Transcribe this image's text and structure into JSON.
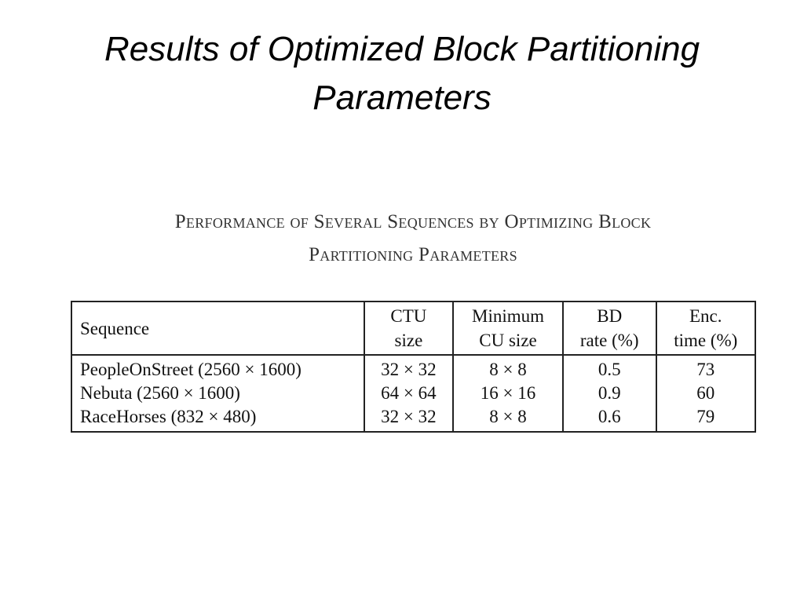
{
  "slide": {
    "title_line1": "Results of Optimized Block Partitioning",
    "title_line2": "Parameters"
  },
  "caption": {
    "line1": "Performance of Several Sequences by Optimizing Block",
    "line2": "Partitioning Parameters"
  },
  "table": {
    "headers": [
      {
        "line1": "Sequence",
        "line2": ""
      },
      {
        "line1": "CTU",
        "line2": "size"
      },
      {
        "line1": "Minimum",
        "line2": "CU size"
      },
      {
        "line1": "BD",
        "line2": "rate (%)"
      },
      {
        "line1": "Enc.",
        "line2": "time (%)"
      }
    ],
    "rows": [
      [
        "PeopleOnStreet (2560 × 1600)",
        "32 × 32",
        "8 × 8",
        "0.5",
        "73"
      ],
      [
        "Nebuta (2560 × 1600)",
        "64 × 64",
        "16 × 16",
        "0.9",
        "60"
      ],
      [
        "RaceHorses (832 × 480)",
        "32 × 32",
        "8 × 8",
        "0.6",
        "79"
      ]
    ]
  }
}
